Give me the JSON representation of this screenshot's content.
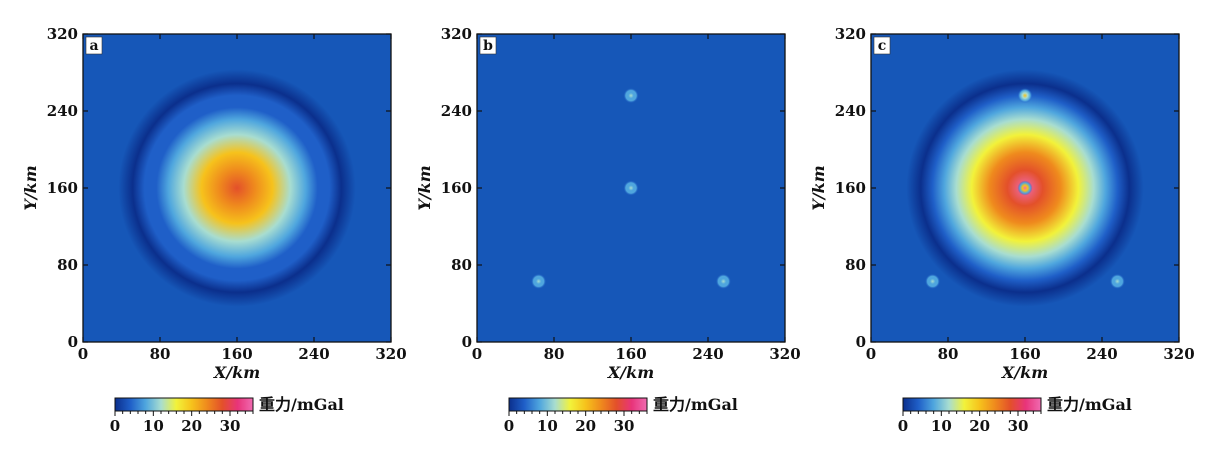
{
  "figure": {
    "colorbar": {
      "stops": [
        "#0b2f8c",
        "#1f5fc8",
        "#4fa6de",
        "#a8ddd0",
        "#f2f23a",
        "#f6c21c",
        "#ef8a1d",
        "#e3502a",
        "#e8347a",
        "#f06bb1"
      ],
      "tick_labels": [
        "0",
        "10",
        "20",
        "30"
      ],
      "unit_label": "重力/mGal"
    }
  },
  "chart_data": [
    {
      "type": "heatmap",
      "panel_label": "a",
      "xlabel": "X/km",
      "ylabel": "Y/km",
      "xlim": [
        0,
        320
      ],
      "ylim": [
        0,
        320
      ],
      "xticks": [
        "0",
        "80",
        "160",
        "240",
        "320"
      ],
      "yticks": [
        "0",
        "80",
        "160",
        "240",
        "320"
      ],
      "anomalies": [
        {
          "kind": "broad",
          "x": 160,
          "y": 160,
          "radius_km": 85
        }
      ],
      "peak_mGal": 27
    },
    {
      "type": "heatmap",
      "panel_label": "b",
      "xlabel": "X/km",
      "ylabel": "Y/km",
      "xlim": [
        0,
        320
      ],
      "ylim": [
        0,
        320
      ],
      "xticks": [
        "0",
        "80",
        "160",
        "240",
        "320"
      ],
      "yticks": [
        "0",
        "80",
        "160",
        "240",
        "320"
      ],
      "anomalies": [
        {
          "kind": "point",
          "x": 160,
          "y": 256
        },
        {
          "kind": "point",
          "x": 160,
          "y": 160
        },
        {
          "kind": "point",
          "x": 64,
          "y": 63
        },
        {
          "kind": "point",
          "x": 256,
          "y": 63
        }
      ],
      "peak_mGal": 10
    },
    {
      "type": "heatmap",
      "panel_label": "c",
      "xlabel": "X/km",
      "ylabel": "Y/km",
      "xlim": [
        0,
        320
      ],
      "ylim": [
        0,
        320
      ],
      "xticks": [
        "0",
        "80",
        "160",
        "240",
        "320"
      ],
      "yticks": [
        "0",
        "80",
        "160",
        "240",
        "320"
      ],
      "anomalies": [
        {
          "kind": "broad",
          "x": 160,
          "y": 160,
          "radius_km": 85
        },
        {
          "kind": "point",
          "x": 160,
          "y": 256
        },
        {
          "kind": "point",
          "x": 160,
          "y": 160
        },
        {
          "kind": "point",
          "x": 64,
          "y": 63
        },
        {
          "kind": "point",
          "x": 256,
          "y": 63
        }
      ],
      "peak_mGal": 34
    }
  ]
}
